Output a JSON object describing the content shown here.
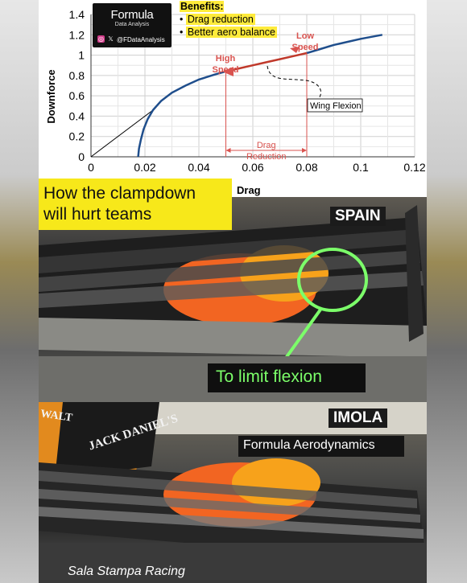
{
  "brand": {
    "name": "Formula",
    "subtitle": "Data Analysis",
    "handle": "@FDataAnalysis",
    "icons": [
      "instagram-icon",
      "x-icon"
    ]
  },
  "benefits": {
    "title": "Benefits:",
    "items": [
      "Drag reduction",
      "Better aero balance"
    ]
  },
  "headline": {
    "lines": [
      "How the clampdown",
      "will hurt teams"
    ]
  },
  "photos": {
    "spain_label": "SPAIN",
    "imola_label": "IMOLA",
    "limit_flexion": "To limit flexion",
    "formula_aero": "Formula Aerodynamics",
    "credit": "Sala Stampa Racing",
    "sponsor_1": "WALT",
    "sponsor_2": "JACK DANIEL'S"
  },
  "colors": {
    "curve_low": "#1f4e8c",
    "curve_mid": "#c0392b",
    "annotation_red": "#d9534f",
    "highlight_yellow": "#ffeb3b",
    "circle_green": "#7cff6a",
    "clamp_box": "#f7e81a"
  },
  "chart_data": {
    "type": "line",
    "title": "",
    "xlabel": "Drag",
    "ylabel": "Downforce",
    "xlim": [
      0,
      0.12
    ],
    "ylim": [
      0,
      1.4
    ],
    "xticks": [
      0,
      0.02,
      0.04,
      0.06,
      0.08,
      0.1,
      0.12
    ],
    "xtick_labels": [
      "0",
      "0.02",
      "0.04",
      "0.06",
      "0.08",
      "0.1",
      "0.12"
    ],
    "yticks": [
      0,
      0.2,
      0.4,
      0.6,
      0.8,
      1,
      1.2,
      1.4
    ],
    "ytick_labels": [
      "0",
      "0.2",
      "0.4",
      "0.6",
      "0.8",
      "1",
      "1.2",
      "1.4"
    ],
    "grid": true,
    "series": [
      {
        "x": [
          0.0175,
          0.0178,
          0.0185,
          0.0195,
          0.021,
          0.023,
          0.026,
          0.03,
          0.035,
          0.04,
          0.046,
          0.05,
          0.055,
          0.06,
          0.065,
          0.07,
          0.075,
          0.08,
          0.085,
          0.09,
          0.095,
          0.1,
          0.108
        ],
        "y": [
          0,
          0.08,
          0.17,
          0.27,
          0.37,
          0.46,
          0.55,
          0.63,
          0.7,
          0.76,
          0.81,
          0.84,
          0.87,
          0.9,
          0.93,
          0.96,
          0.99,
          1.02,
          1.06,
          1.1,
          1.13,
          1.16,
          1.2
        ]
      }
    ],
    "tangent_line": {
      "x": [
        0,
        0.023
      ],
      "y": [
        0,
        0.46
      ]
    },
    "drag_reduction": {
      "x_from": 0.05,
      "x_to": 0.08,
      "label_lines": [
        "Drag",
        "Reduction"
      ]
    },
    "annotations": {
      "high_speed": {
        "lines": [
          "High",
          "Speed"
        ]
      },
      "low_speed": {
        "lines": [
          "Low",
          "Speed"
        ]
      },
      "wing_flexion": "Wing Flexion"
    }
  }
}
